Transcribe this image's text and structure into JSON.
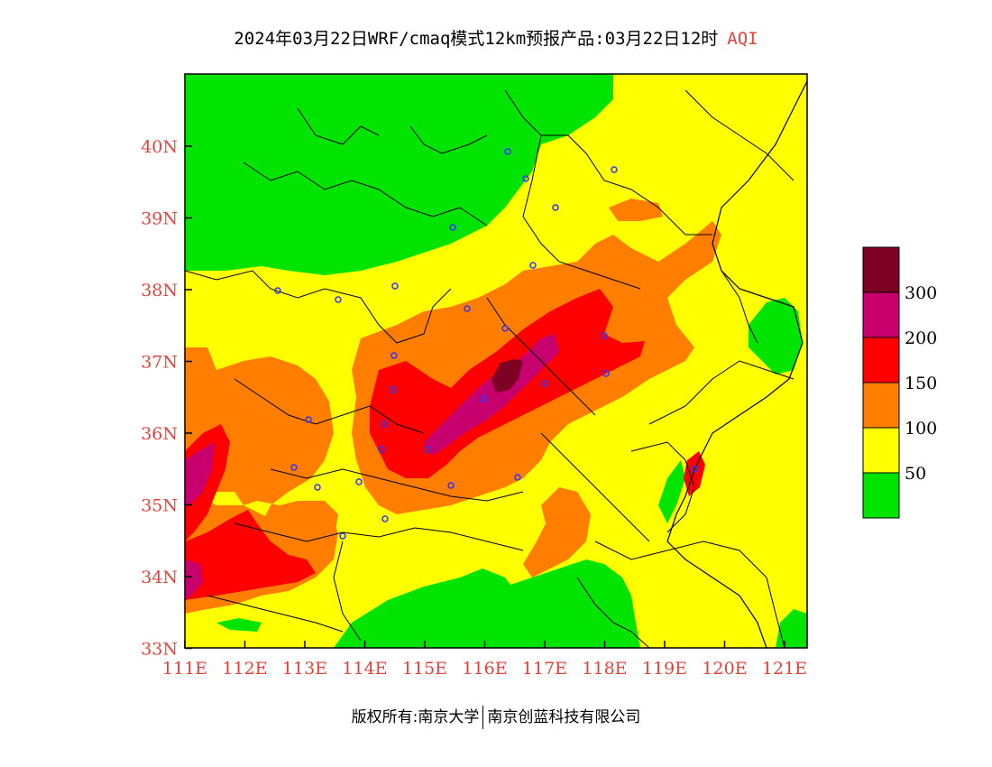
{
  "title": {
    "text": "2024年03月22日WRF/cmaq模式12km预报产品:03月22日12时",
    "variable": "AQI"
  },
  "footer": {
    "left": "版权所有:南京大学",
    "right": "南京创蓝科技有限公司"
  },
  "axes": {
    "lat_ticks": [
      "40N",
      "39N",
      "38N",
      "37N",
      "36N",
      "35N",
      "34N",
      "33N"
    ],
    "lon_ticks": [
      "111E",
      "112E",
      "113E",
      "114E",
      "115E",
      "116E",
      "117E",
      "118E",
      "119E",
      "120E",
      "121E"
    ]
  },
  "colorbar": {
    "labels": [
      "300",
      "200",
      "150",
      "100",
      "50"
    ],
    "classes": [
      {
        "min": 0,
        "max": 50,
        "color": "#00e400"
      },
      {
        "min": 50,
        "max": 100,
        "color": "#ffff00"
      },
      {
        "min": 100,
        "max": 150,
        "color": "#ff7e00"
      },
      {
        "min": 150,
        "max": 200,
        "color": "#ff0000"
      },
      {
        "min": 200,
        "max": 300,
        "color": "#c8006e"
      },
      {
        "min": 300,
        "max": 500,
        "color": "#7e0023"
      }
    ]
  },
  "map": {
    "extent": {
      "lon_min": 111,
      "lon_max": 121.4,
      "lat_min": 33,
      "lat_max": 41
    },
    "background_color": "#ffff00",
    "station_marker_color": "#3333ff"
  }
}
